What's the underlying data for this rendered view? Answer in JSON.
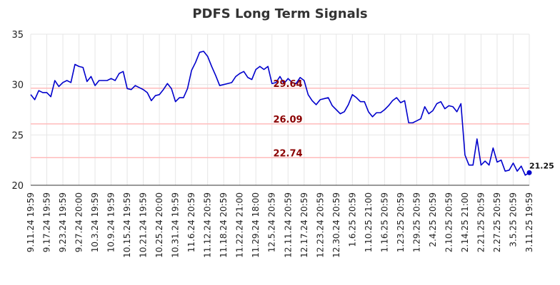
{
  "chart_data": {
    "type": "line",
    "title": "PDFS Long Term Signals",
    "ylim": [
      20,
      35
    ],
    "y_ticks": [
      "20",
      "25",
      "30",
      "35"
    ],
    "x_tick_labels": [
      "9.11.24 19:59",
      "9.17.24 19:59",
      "9.23.24 19:59",
      "9.27.24 20:00",
      "10.3.24 19:59",
      "10.9.24 19:59",
      "10.15.24 19:59",
      "10.21.24 19:59",
      "10.25.24 20:00",
      "10.31.24 19:59",
      "11.6.24 20:59",
      "11.12.24 20:59",
      "11.18.24 20:59",
      "11.22.24 21:00",
      "11.29.24 18:00",
      "12.5.24 20:59",
      "12.11.24 20:59",
      "12.17.24 20:59",
      "12.23.24 20:59",
      "12.30.24 20:59",
      "1.6.25 20:59",
      "1.10.25 21:00",
      "1.16.25 20:59",
      "1.23.25 20:59",
      "1.29.25 20:59",
      "2.4.25 20:59",
      "2.10.25 20:59",
      "2.14.25 21:00",
      "2.21.25 20:59",
      "2.27.25 20:59",
      "3.5.25 20:59",
      "3.11.25 19:59"
    ],
    "grid": true,
    "line_color": "#0000cc",
    "ref_line_color": "#ffbbbb",
    "ref_label_color": "#8b0000",
    "reference_lines": [
      {
        "value": 29.64,
        "label": "29.64"
      },
      {
        "value": 26.09,
        "label": "26.09"
      },
      {
        "value": 22.74,
        "label": "22.74"
      }
    ],
    "series": [
      {
        "values": [
          29.0,
          28.5,
          29.4,
          29.2,
          29.2,
          28.8,
          30.4,
          29.8,
          30.2,
          30.4,
          30.2,
          32.0,
          31.8,
          31.7,
          30.3,
          30.8,
          29.9,
          30.4,
          30.4,
          30.4,
          30.6,
          30.4,
          31.1,
          31.3,
          29.6,
          29.5,
          29.9,
          29.7,
          29.5,
          29.2,
          28.4,
          28.9,
          29.0,
          29.5,
          30.1,
          29.6,
          28.3,
          28.7,
          28.7,
          29.6,
          31.4,
          32.2,
          33.2,
          33.3,
          32.8,
          31.8,
          30.9,
          29.9,
          30.0,
          30.1,
          30.2,
          30.8,
          31.1,
          31.3,
          30.7,
          30.5,
          31.5,
          31.8,
          31.5,
          31.8,
          30.1,
          30.2,
          30.8,
          30.1,
          30.6,
          30.2,
          30.1,
          30.7,
          30.4,
          29.0,
          28.4,
          28.0,
          28.5,
          28.6,
          28.7,
          27.9,
          27.5,
          27.1,
          27.3,
          28.0,
          29.0,
          28.7,
          28.3,
          28.3,
          27.3,
          26.8,
          27.2,
          27.2,
          27.5,
          27.9,
          28.4,
          28.7,
          28.2,
          28.4,
          26.2,
          26.2,
          26.4,
          26.6,
          27.8,
          27.1,
          27.4,
          28.1,
          28.3,
          27.6,
          27.9,
          27.8,
          27.3,
          28.1,
          23.0,
          22.0,
          22.0,
          24.6,
          22.0,
          22.4,
          22.0,
          23.7,
          22.3,
          22.5,
          21.4,
          21.5,
          22.2,
          21.4,
          21.9,
          21.0,
          21.25
        ]
      }
    ],
    "last_value": 21.25,
    "last_value_label": "21.25"
  }
}
